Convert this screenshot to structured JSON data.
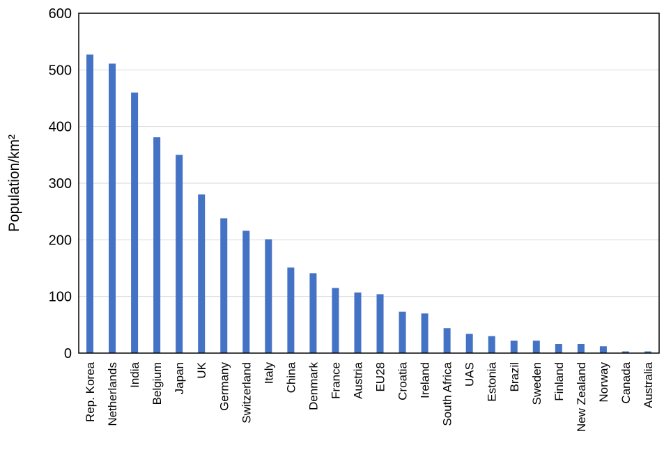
{
  "chart_data": {
    "type": "bar",
    "title": "",
    "xlabel": "",
    "ylabel": "Population/km²",
    "ylim": [
      0,
      600
    ],
    "yticks": [
      0,
      100,
      200,
      300,
      400,
      500,
      600
    ],
    "grid": true,
    "legend": "none",
    "bar_color": "#4472c4",
    "categories": [
      "Rep. Korea",
      "Netherlands",
      "India",
      "Belgium",
      "Japan",
      "UK",
      "Germany",
      "Switzerland",
      "Italy",
      "China",
      "Denmark",
      "France",
      "Austria",
      "EU28",
      "Croatia",
      "Ireland",
      "South Africa",
      "UAS",
      "Estonia",
      "Brazil",
      "Sweden",
      "Finland",
      "New Zealand",
      "Norway",
      "Canada",
      "Australia"
    ],
    "values": [
      527,
      511,
      460,
      381,
      350,
      280,
      238,
      216,
      201,
      151,
      141,
      115,
      107,
      104,
      73,
      70,
      44,
      34,
      30,
      22,
      22,
      16,
      16,
      12,
      3,
      3
    ]
  }
}
